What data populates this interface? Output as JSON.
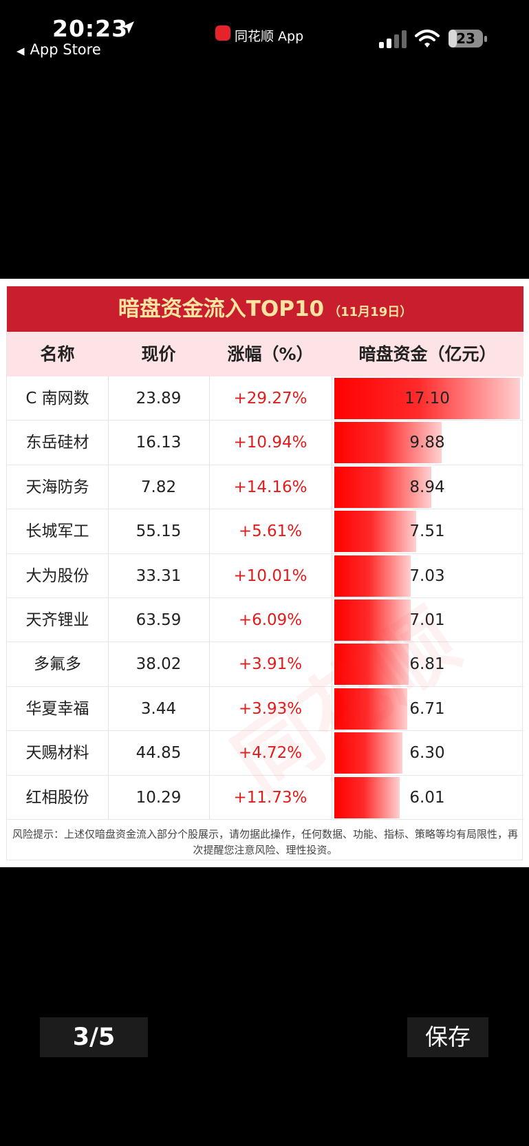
{
  "status_bar": {
    "time": "20:23",
    "back_label": "App Store",
    "app_name": "同花顺 App",
    "battery_level": "23"
  },
  "table": {
    "title": "暗盘资金流入TOP10",
    "title_date": "（11月19日）",
    "headers": [
      "名称",
      "现价",
      "涨幅（%）",
      "暗盘资金（亿元）"
    ],
    "rows": [
      {
        "name": "C 南网数",
        "price": "23.89",
        "change": "+29.27%",
        "flow": "17.10"
      },
      {
        "name": "东岳硅材",
        "price": "16.13",
        "change": "+10.94%",
        "flow": "9.88"
      },
      {
        "name": "天海防务",
        "price": "7.82",
        "change": "+14.16%",
        "flow": "8.94"
      },
      {
        "name": "长城军工",
        "price": "55.15",
        "change": "+5.61%",
        "flow": "7.51"
      },
      {
        "name": "大为股份",
        "price": "33.31",
        "change": "+10.01%",
        "flow": "7.03"
      },
      {
        "name": "天齐锂业",
        "price": "63.59",
        "change": "+6.09%",
        "flow": "7.01"
      },
      {
        "name": "多氟多",
        "price": "38.02",
        "change": "+3.91%",
        "flow": "6.81"
      },
      {
        "name": "华夏幸福",
        "price": "3.44",
        "change": "+3.93%",
        "flow": "6.71"
      },
      {
        "name": "天赐材料",
        "price": "44.85",
        "change": "+4.72%",
        "flow": "6.30"
      },
      {
        "name": "红相股份",
        "price": "10.29",
        "change": "+11.73%",
        "flow": "6.01"
      }
    ],
    "risk_note": "风险提示：上述仅暗盘资金流入部分个股展示，请勿据此操作，任何数据、功能、指标、策略等均有局限性，再次提醒您注意风险、理性投资。",
    "watermark": "同花顺"
  },
  "viewer": {
    "page_indicator": "3/5",
    "save_label": "保存"
  },
  "colors": {
    "title_bg": "#c91e2d",
    "title_text": "#ffe3a0",
    "header_bg": "#fde3e6",
    "up_red": "#e31b1b"
  }
}
